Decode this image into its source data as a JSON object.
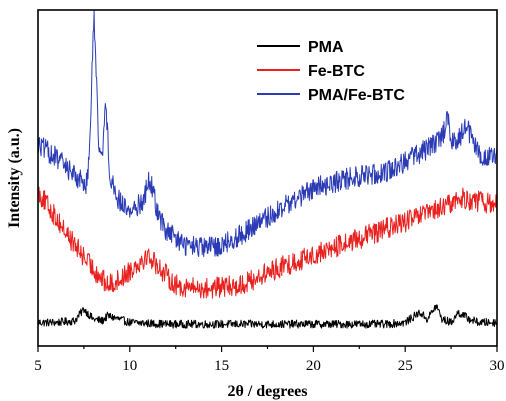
{
  "chart_data": {
    "type": "line",
    "xlabel": "2θ /  degrees",
    "ylabel": "Intensity (a.u.)",
    "xlim": [
      5,
      30
    ],
    "ylim": [
      0,
      100
    ],
    "x_ticks": [
      5,
      10,
      15,
      20,
      25,
      30
    ],
    "x_tick_labels": [
      "5",
      "10",
      "15",
      "20",
      "25",
      "30"
    ],
    "y_ticks_labeled": false,
    "grid": false,
    "legend_position": "top-right",
    "series": [
      {
        "name": "PMA",
        "color": "#000000",
        "x": [
          5,
          6,
          7,
          7.5,
          8,
          8.5,
          8.8,
          10,
          12,
          15,
          18,
          20,
          22,
          24,
          25,
          25.8,
          26.2,
          26.7,
          27,
          27.5,
          27.9,
          28.5,
          29,
          30
        ],
        "y": [
          7,
          7,
          7.5,
          11,
          8,
          7.5,
          9,
          7,
          6.5,
          6.5,
          6.5,
          6.5,
          6.5,
          6.5,
          7,
          10,
          8,
          12,
          8,
          7,
          10,
          8,
          7,
          7
        ]
      },
      {
        "name": "Fe-BTC",
        "color": "#e8201e",
        "x": [
          5,
          6,
          7,
          8,
          8.8,
          9.5,
          10.5,
          11,
          11.5,
          12.5,
          14,
          16,
          18,
          20,
          22,
          24,
          26,
          27,
          28,
          29,
          30
        ],
        "y": [
          46,
          38,
          30,
          23,
          18,
          20,
          25,
          27,
          24,
          18,
          17,
          18,
          23,
          27,
          31,
          35,
          39,
          41,
          44,
          43,
          42
        ]
      },
      {
        "name": "PMA/Fe-BTC",
        "color": "#2a3bb5",
        "x": [
          5,
          6,
          7,
          7.6,
          7.8,
          8.05,
          8.3,
          8.5,
          8.7,
          8.9,
          9.3,
          10,
          10.7,
          11.1,
          11.5,
          12,
          13,
          14,
          15,
          16,
          18,
          20,
          22,
          24,
          25,
          26,
          27,
          27.3,
          27.6,
          28,
          28.3,
          29,
          30
        ],
        "y": [
          60,
          56,
          51,
          48,
          56,
          100,
          60,
          58,
          72,
          52,
          44,
          40,
          43,
          50,
          40,
          34,
          30,
          29,
          30,
          33,
          40,
          47,
          50,
          52,
          55,
          58,
          62,
          68,
          60,
          62,
          66,
          57,
          56
        ]
      }
    ]
  }
}
